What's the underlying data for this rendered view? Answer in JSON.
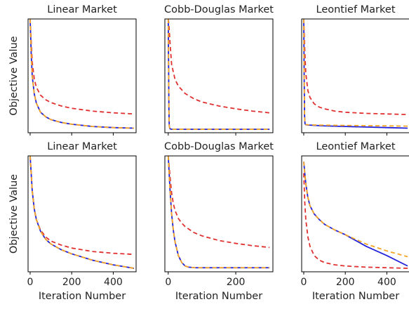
{
  "colors": {
    "blue": "#2222dd",
    "orange": "#f5a623",
    "red": "#e03030",
    "axis": "#000000"
  },
  "chart_data": [
    {
      "type": "line",
      "title": "Linear Market",
      "ylabel": "Objective Value",
      "xlabel": "",
      "xlim": [
        -10,
        510
      ],
      "ylim": [
        0,
        1
      ],
      "xticks": [],
      "y_ticks_shown": false,
      "grid": false,
      "series": [
        {
          "color": "#e03030",
          "style": "dashed",
          "x": [
            0,
            5,
            10,
            20,
            30,
            50,
            75,
            100,
            150,
            200,
            300,
            400,
            500
          ],
          "y": [
            1.0,
            0.8,
            0.62,
            0.47,
            0.4,
            0.33,
            0.29,
            0.265,
            0.235,
            0.215,
            0.19,
            0.175,
            0.165
          ]
        },
        {
          "color": "#2222dd",
          "style": "solid",
          "x": [
            0,
            5,
            10,
            20,
            30,
            50,
            75,
            100,
            150,
            200,
            300,
            400,
            500
          ],
          "y": [
            1.0,
            0.7,
            0.5,
            0.34,
            0.26,
            0.18,
            0.14,
            0.115,
            0.09,
            0.075,
            0.055,
            0.045,
            0.04
          ]
        },
        {
          "color": "#f5a623",
          "style": "dashed",
          "x": [
            0,
            5,
            10,
            20,
            30,
            50,
            75,
            100,
            150,
            200,
            300,
            400,
            500
          ],
          "y": [
            1.0,
            0.7,
            0.5,
            0.34,
            0.26,
            0.18,
            0.14,
            0.115,
            0.09,
            0.075,
            0.055,
            0.045,
            0.04
          ]
        }
      ]
    },
    {
      "type": "line",
      "title": "Cobb-Douglas Market",
      "ylabel": "",
      "xlabel": "",
      "xlim": [
        -10,
        310
      ],
      "ylim": [
        0,
        1
      ],
      "xticks": [],
      "y_ticks_shown": false,
      "grid": false,
      "series": [
        {
          "color": "#e03030",
          "style": "dashed",
          "x": [
            0,
            2,
            5,
            10,
            20,
            30,
            50,
            75,
            100,
            150,
            200,
            250,
            300
          ],
          "y": [
            1.0,
            0.95,
            0.8,
            0.6,
            0.47,
            0.41,
            0.345,
            0.3,
            0.27,
            0.235,
            0.21,
            0.19,
            0.175
          ]
        },
        {
          "color": "#2222dd",
          "style": "solid",
          "x": [
            0,
            1,
            2,
            3,
            5,
            10,
            50,
            100,
            200,
            300
          ],
          "y": [
            1.0,
            0.6,
            0.2,
            0.06,
            0.035,
            0.03,
            0.03,
            0.03,
            0.03,
            0.03
          ]
        },
        {
          "color": "#f5a623",
          "style": "dashed",
          "x": [
            0,
            1,
            2,
            3,
            5,
            10,
            50,
            100,
            200,
            300
          ],
          "y": [
            1.0,
            0.6,
            0.2,
            0.06,
            0.035,
            0.03,
            0.03,
            0.03,
            0.03,
            0.03
          ]
        }
      ]
    },
    {
      "type": "line",
      "title": "Leontief Market",
      "ylabel": "",
      "xlabel": "",
      "xlim": [
        -10,
        510
      ],
      "ylim": [
        0,
        1
      ],
      "xticks": [],
      "y_ticks_shown": false,
      "grid": false,
      "series": [
        {
          "color": "#e03030",
          "style": "dashed",
          "x": [
            0,
            5,
            10,
            20,
            30,
            50,
            75,
            100,
            150,
            200,
            300,
            400,
            500
          ],
          "y": [
            1.0,
            0.72,
            0.52,
            0.37,
            0.31,
            0.255,
            0.225,
            0.21,
            0.19,
            0.18,
            0.17,
            0.165,
            0.16
          ]
        },
        {
          "color": "#2222dd",
          "style": "solid",
          "x": [
            0,
            2,
            4,
            6,
            10,
            20,
            50,
            100,
            200,
            300,
            400,
            500
          ],
          "y": [
            1.0,
            0.5,
            0.15,
            0.08,
            0.07,
            0.068,
            0.065,
            0.06,
            0.055,
            0.05,
            0.045,
            0.04
          ]
        },
        {
          "color": "#f5a623",
          "style": "dashed",
          "x": [
            0,
            2,
            4,
            6,
            10,
            20,
            50,
            100,
            200,
            300,
            400,
            500
          ],
          "y": [
            1.0,
            0.5,
            0.15,
            0.08,
            0.072,
            0.07,
            0.068,
            0.066,
            0.064,
            0.062,
            0.06,
            0.058
          ]
        }
      ]
    },
    {
      "type": "line",
      "title": "Linear Market",
      "ylabel": "Objective Value",
      "xlabel": "Iteration Number",
      "xlim": [
        -10,
        510
      ],
      "ylim": [
        0,
        1
      ],
      "xticks": [
        0,
        200,
        400
      ],
      "y_ticks_shown": false,
      "grid": false,
      "series": [
        {
          "color": "#e03030",
          "style": "dashed",
          "x": [
            0,
            5,
            10,
            20,
            30,
            50,
            75,
            100,
            150,
            200,
            300,
            400,
            500
          ],
          "y": [
            1.0,
            0.85,
            0.7,
            0.54,
            0.45,
            0.36,
            0.3,
            0.265,
            0.23,
            0.205,
            0.175,
            0.16,
            0.15
          ]
        },
        {
          "color": "#2222dd",
          "style": "solid",
          "x": [
            0,
            5,
            10,
            20,
            30,
            50,
            75,
            100,
            150,
            200,
            300,
            400,
            500
          ],
          "y": [
            1.0,
            0.85,
            0.7,
            0.54,
            0.45,
            0.35,
            0.28,
            0.24,
            0.19,
            0.155,
            0.1,
            0.06,
            0.03
          ]
        },
        {
          "color": "#f5a623",
          "style": "dashed",
          "x": [
            0,
            5,
            10,
            20,
            30,
            50,
            75,
            100,
            150,
            200,
            300,
            400,
            500
          ],
          "y": [
            1.0,
            0.85,
            0.7,
            0.54,
            0.45,
            0.35,
            0.28,
            0.24,
            0.19,
            0.155,
            0.1,
            0.06,
            0.03
          ]
        }
      ]
    },
    {
      "type": "line",
      "title": "Cobb-Douglas Market",
      "ylabel": "",
      "xlabel": "Iteration Number",
      "xlim": [
        -10,
        310
      ],
      "ylim": [
        0,
        1
      ],
      "xticks": [
        0,
        200
      ],
      "y_ticks_shown": false,
      "grid": false,
      "series": [
        {
          "color": "#e03030",
          "style": "dashed",
          "x": [
            0,
            5,
            10,
            15,
            20,
            30,
            40,
            50,
            75,
            100,
            150,
            200,
            250,
            300
          ],
          "y": [
            1.0,
            0.83,
            0.68,
            0.59,
            0.53,
            0.46,
            0.42,
            0.39,
            0.34,
            0.31,
            0.27,
            0.245,
            0.225,
            0.21
          ]
        },
        {
          "color": "#2222dd",
          "style": "solid",
          "x": [
            0,
            5,
            10,
            15,
            20,
            30,
            40,
            50,
            60,
            80,
            100,
            200,
            300
          ],
          "y": [
            1.0,
            0.72,
            0.5,
            0.36,
            0.26,
            0.14,
            0.08,
            0.05,
            0.04,
            0.035,
            0.035,
            0.035,
            0.035
          ]
        },
        {
          "color": "#f5a623",
          "style": "dashed",
          "x": [
            0,
            5,
            10,
            15,
            20,
            30,
            40,
            50,
            60,
            80,
            100,
            200,
            300
          ],
          "y": [
            1.0,
            0.72,
            0.5,
            0.36,
            0.26,
            0.14,
            0.08,
            0.05,
            0.04,
            0.035,
            0.035,
            0.035,
            0.035
          ]
        }
      ]
    },
    {
      "type": "line",
      "title": "Leontief Market",
      "ylabel": "",
      "xlabel": "Iteration Number",
      "xlim": [
        -10,
        510
      ],
      "ylim": [
        0,
        1
      ],
      "xticks": [
        0,
        200,
        400
      ],
      "y_ticks_shown": false,
      "grid": false,
      "series": [
        {
          "color": "#e03030",
          "style": "dashed",
          "x": [
            0,
            5,
            10,
            20,
            30,
            50,
            75,
            100,
            150,
            200,
            300,
            400,
            500
          ],
          "y": [
            0.85,
            0.6,
            0.45,
            0.3,
            0.22,
            0.14,
            0.1,
            0.08,
            0.06,
            0.05,
            0.04,
            0.035,
            0.03
          ]
        },
        {
          "color": "#2222dd",
          "style": "solid",
          "x": [
            0,
            5,
            10,
            20,
            30,
            50,
            75,
            100,
            150,
            200,
            300,
            400,
            500
          ],
          "y": [
            0.95,
            0.85,
            0.76,
            0.64,
            0.57,
            0.5,
            0.45,
            0.41,
            0.36,
            0.32,
            0.22,
            0.14,
            0.05
          ]
        },
        {
          "color": "#f5a623",
          "style": "dashed",
          "x": [
            0,
            5,
            10,
            20,
            30,
            50,
            75,
            100,
            150,
            200,
            300,
            400,
            500
          ],
          "y": [
            0.95,
            0.85,
            0.76,
            0.64,
            0.57,
            0.5,
            0.45,
            0.41,
            0.36,
            0.32,
            0.24,
            0.18,
            0.13
          ]
        }
      ]
    }
  ]
}
